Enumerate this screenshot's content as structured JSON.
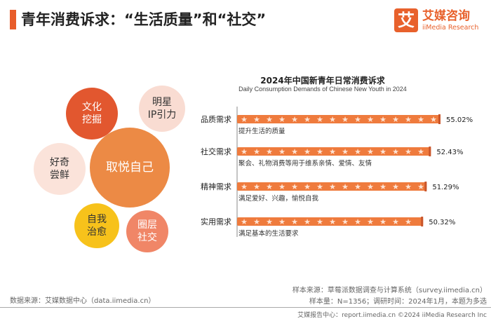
{
  "header": {
    "title": "青年消费诉求：“生活质量”和“社交”"
  },
  "logo": {
    "mark": "艾",
    "name_cn": "艾媒咨询",
    "name_en": "iiMedia Research"
  },
  "bubbles": [
    {
      "label": "文化\n挖掘",
      "color": "#e2572f",
      "text_color": "#ffffff"
    },
    {
      "label": "明星\nIP引力",
      "color": "#f9dcd2",
      "text_color": "#333333"
    },
    {
      "label": "好奇\n尝鲜",
      "color": "#fbe3da",
      "text_color": "#333333"
    },
    {
      "label": "取悦自己",
      "color": "#ec8a45",
      "text_color": "#ffffff"
    },
    {
      "label": "自我\n治愈",
      "color": "#f7c21b",
      "text_color": "#333333"
    },
    {
      "label": "圈层\n社交",
      "color": "#f08667",
      "text_color": "#ffffff"
    }
  ],
  "chart_data": {
    "type": "bar",
    "title": "2024年中国新青年日常消费诉求",
    "subtitle": "Daily Consumption Demands of Chinese New Youth in 2024",
    "categories": [
      "品质需求",
      "社交需求",
      "精神需求",
      "实用需求"
    ],
    "values": [
      55.02,
      52.43,
      51.29,
      50.32
    ],
    "value_labels": [
      "55.02%",
      "52.43%",
      "51.29%",
      "50.32%"
    ],
    "descriptions": [
      "提升生活的质量",
      "聚会、礼物消费等用于维系亲情、爱情、友情",
      "满足爱好、兴趣，愉悦自我",
      "满足基本的生活要求"
    ],
    "unit": "%",
    "bar_color": "#ef7b3d",
    "axis_color": "#888888"
  },
  "footer": {
    "source": "数据来源：艾媒数据中心（data.iimedia.cn）",
    "sample_source": "样本来源：草莓派数据调查与计算系统（survey.iimedia.cn）",
    "sample_info": "样本量：N=1356；调研时间：2024年1月，本题为多选",
    "copyright": "艾媒报告中心：report.iimedia.cn  ©2024  iiMedia Research  Inc"
  }
}
